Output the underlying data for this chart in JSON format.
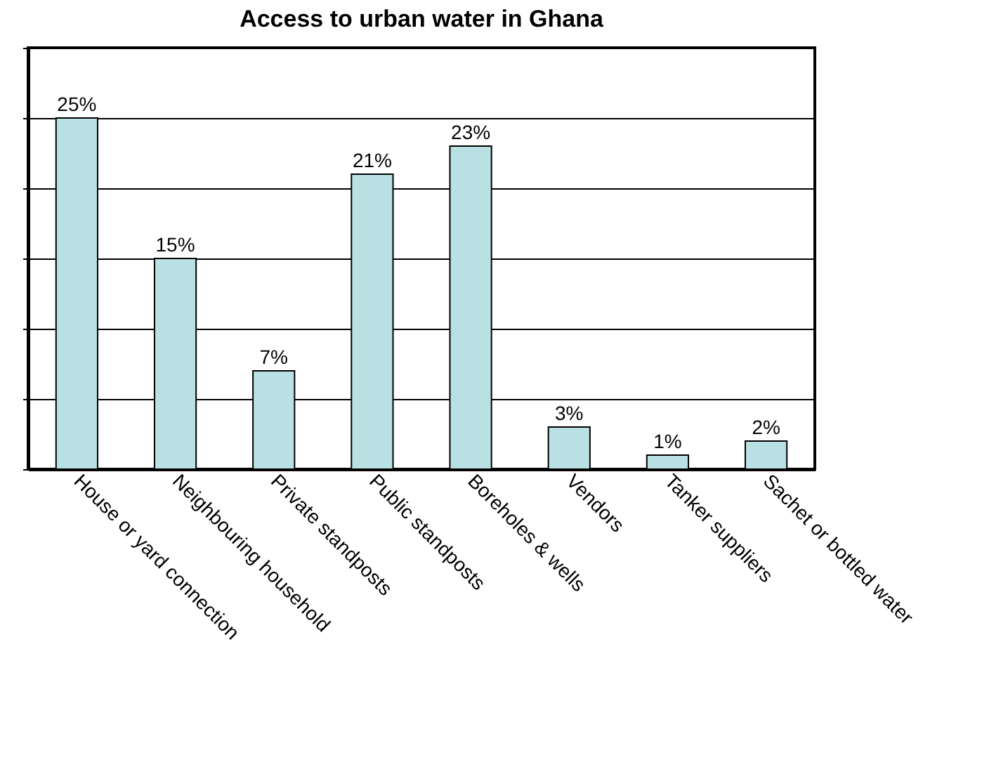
{
  "chart_data": {
    "type": "bar",
    "title": "Access to urban water in Ghana",
    "categories": [
      "House or yard connection",
      "Neighbouring household",
      "Private standposts",
      "Public standposts",
      "Boreholes & wells",
      "Vendors",
      "Tanker suppliers",
      "Sachet or bottled water"
    ],
    "values": [
      25,
      15,
      7,
      21,
      23,
      3,
      1,
      2
    ],
    "value_labels": [
      "25%",
      "15%",
      "7%",
      "21%",
      "23%",
      "3%",
      "1%",
      "2%"
    ],
    "color": "#b9e0e3",
    "ylim": [
      0,
      30
    ],
    "yticks": [
      {
        "value": 0,
        "label": null
      },
      {
        "value": 5,
        "label": null
      },
      {
        "value": 10,
        "label": null
      },
      {
        "value": 15,
        "label": null
      },
      {
        "value": 20,
        "label": null
      },
      {
        "value": 25,
        "label": null
      },
      {
        "value": 30,
        "label": null
      }
    ],
    "grid": "y"
  }
}
